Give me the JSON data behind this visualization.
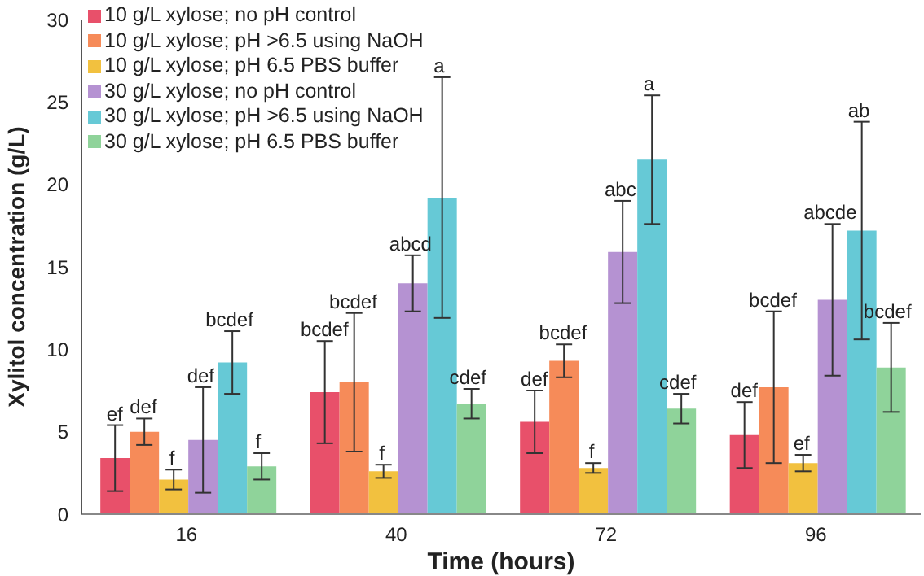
{
  "chart_data": {
    "type": "bar",
    "xlabel": "Time (hours)",
    "ylabel": "Xylitol concentration (g/L)",
    "categories": [
      "16",
      "40",
      "72",
      "96"
    ],
    "ylim": [
      0,
      30
    ],
    "yticks": [
      0,
      5,
      10,
      15,
      20,
      25,
      30
    ],
    "grid": false,
    "legend": "top left",
    "series": [
      {
        "name": "10 g/L xylose; no pH control",
        "color": "#e8506a",
        "values": [
          3.4,
          7.4,
          5.6,
          4.8
        ],
        "errors": [
          2.0,
          3.1,
          1.9,
          2.0
        ]
      },
      {
        "name": "10 g/L xylose; pH >6.5 using NaOH",
        "color": "#f68b59",
        "values": [
          5.0,
          8.0,
          9.3,
          7.7
        ],
        "errors": [
          0.8,
          4.2,
          1.0,
          4.6
        ]
      },
      {
        "name": "10 g/L xylose; pH 6.5 PBS buffer",
        "color": "#f2c13f",
        "values": [
          2.1,
          2.6,
          2.8,
          3.1
        ],
        "errors": [
          0.6,
          0.4,
          0.3,
          0.5
        ]
      },
      {
        "name": "30 g/L xylose; no pH control",
        "color": "#b592d2",
        "values": [
          4.5,
          14.0,
          15.9,
          13.0
        ],
        "errors": [
          3.2,
          1.7,
          3.1,
          4.6
        ]
      },
      {
        "name": "30 g/L xylose; pH >6.5 using NaOH",
        "color": "#66c9d6",
        "values": [
          9.2,
          19.2,
          21.5,
          17.2
        ],
        "errors": [
          1.9,
          7.3,
          3.9,
          6.6
        ]
      },
      {
        "name": "30 g/L xylose; pH 6.5 PBS buffer",
        "color": "#8fd39a",
        "values": [
          2.9,
          6.7,
          6.4,
          8.9
        ],
        "errors": [
          0.8,
          0.9,
          0.9,
          2.7
        ]
      }
    ],
    "annotations": [
      "ef",
      "def",
      "f",
      "def",
      "bcdef",
      "f",
      "bcdef",
      "bcdef",
      "f",
      "abcd",
      "a",
      "cdef",
      "def",
      "bcdef",
      "f",
      "abc",
      "a",
      "cdef",
      "def",
      "bcdef",
      "ef",
      "abcde",
      "ab",
      "bcdef"
    ]
  }
}
